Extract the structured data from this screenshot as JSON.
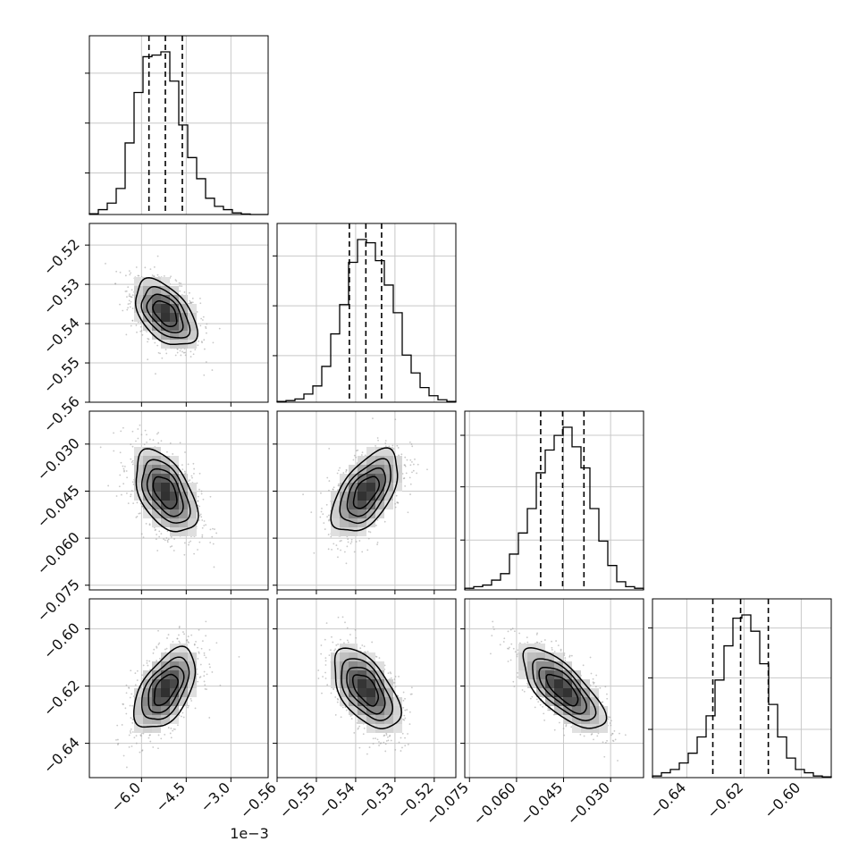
{
  "chart_data": {
    "type": "corner",
    "grid": true,
    "quantile_lines": "dashed",
    "variables": [
      {
        "range": [
          -0.00775,
          -0.00175
        ],
        "ticks": [
          -0.006,
          -0.0045,
          -0.003
        ],
        "tick_labels": [
          "−6.0",
          "−4.5",
          "−3.0"
        ],
        "offset_label": "1e−3",
        "quantiles": [
          -0.00575,
          -0.0052,
          -0.00463
        ],
        "median": -0.0052,
        "sigma": 0.00055,
        "hist": [
          0.005,
          0.03,
          0.07,
          0.16,
          0.44,
          0.75,
          0.97,
          0.98,
          1.0,
          0.82,
          0.55,
          0.35,
          0.22,
          0.1,
          0.05,
          0.03,
          0.01,
          0.003,
          0.0,
          0.0
        ],
        "hist_ticks": [
          0.25,
          0.55,
          0.85
        ]
      },
      {
        "range": [
          -0.56,
          -0.5145
        ],
        "ticks": [
          -0.56,
          -0.55,
          -0.54,
          -0.53,
          -0.52
        ],
        "tick_labels": [
          "−0.56",
          "−0.55",
          "−0.54",
          "−0.53",
          "−0.52"
        ],
        "quantiles": [
          -0.5416,
          -0.5374,
          -0.5334
        ],
        "median": -0.5374,
        "sigma": 0.0045,
        "hist": [
          0.005,
          0.01,
          0.02,
          0.05,
          0.1,
          0.22,
          0.42,
          0.6,
          0.86,
          1.0,
          0.98,
          0.87,
          0.72,
          0.55,
          0.29,
          0.18,
          0.09,
          0.04,
          0.015,
          0.005
        ],
        "hist_ticks": [
          0.28,
          0.58,
          0.88
        ]
      },
      {
        "range": [
          -0.0765,
          -0.0195
        ],
        "ticks": [
          -0.075,
          -0.06,
          -0.045,
          -0.03
        ],
        "tick_labels": [
          "−0.075",
          "−0.060",
          "−0.045",
          "−0.030"
        ],
        "quantiles": [
          -0.0523,
          -0.0453,
          -0.0385
        ],
        "median": -0.0453,
        "sigma": 0.007,
        "hist": [
          0.01,
          0.02,
          0.03,
          0.06,
          0.1,
          0.22,
          0.35,
          0.5,
          0.72,
          0.86,
          0.95,
          1.0,
          0.88,
          0.75,
          0.5,
          0.3,
          0.15,
          0.05,
          0.02,
          0.01
        ],
        "hist_ticks": [
          0.3,
          0.62,
          0.93
        ]
      },
      {
        "range": [
          -0.652,
          -0.5895
        ],
        "ticks": [
          -0.64,
          -0.62,
          -0.6
        ],
        "tick_labels": [
          "−0.64",
          "−0.62",
          "−0.60"
        ],
        "quantiles": [
          -0.6309,
          -0.6212,
          -0.6115
        ],
        "median": -0.6212,
        "sigma": 0.0075,
        "hist": [
          0.01,
          0.03,
          0.05,
          0.09,
          0.15,
          0.25,
          0.38,
          0.6,
          0.81,
          0.98,
          1.0,
          0.9,
          0.7,
          0.45,
          0.25,
          0.12,
          0.05,
          0.03,
          0.01,
          0.005
        ],
        "hist_ticks": [
          0.29,
          0.6,
          0.9
        ]
      }
    ],
    "correlations": [
      {
        "row": 1,
        "col": 0,
        "rho": -0.48
      },
      {
        "row": 2,
        "col": 0,
        "rho": -0.48
      },
      {
        "row": 2,
        "col": 1,
        "rho": 0.55
      },
      {
        "row": 3,
        "col": 0,
        "rho": 0.52
      },
      {
        "row": 3,
        "col": 1,
        "rho": -0.55
      },
      {
        "row": 3,
        "col": 2,
        "rho": -0.72
      }
    ]
  }
}
